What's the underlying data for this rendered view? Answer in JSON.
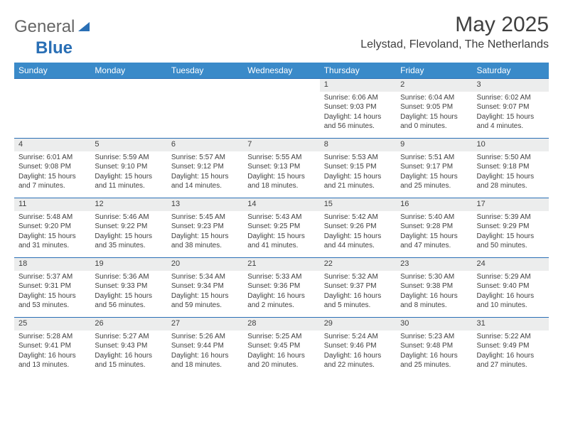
{
  "brand": {
    "part1": "General",
    "part2": "Blue"
  },
  "title": "May 2025",
  "location": "Lelystad, Flevoland, The Netherlands",
  "colors": {
    "header_bg": "#3a8ac9",
    "header_text": "#ffffff",
    "daynum_bg": "#eceded",
    "rule": "#2a6fb5",
    "text": "#404040",
    "brand_accent": "#2a6fb5"
  },
  "day_headers": [
    "Sunday",
    "Monday",
    "Tuesday",
    "Wednesday",
    "Thursday",
    "Friday",
    "Saturday"
  ],
  "weeks": [
    [
      null,
      null,
      null,
      null,
      {
        "n": "1",
        "sunrise": "6:06 AM",
        "sunset": "9:03 PM",
        "daylight": "14 hours and 56 minutes."
      },
      {
        "n": "2",
        "sunrise": "6:04 AM",
        "sunset": "9:05 PM",
        "daylight": "15 hours and 0 minutes."
      },
      {
        "n": "3",
        "sunrise": "6:02 AM",
        "sunset": "9:07 PM",
        "daylight": "15 hours and 4 minutes."
      }
    ],
    [
      {
        "n": "4",
        "sunrise": "6:01 AM",
        "sunset": "9:08 PM",
        "daylight": "15 hours and 7 minutes."
      },
      {
        "n": "5",
        "sunrise": "5:59 AM",
        "sunset": "9:10 PM",
        "daylight": "15 hours and 11 minutes."
      },
      {
        "n": "6",
        "sunrise": "5:57 AM",
        "sunset": "9:12 PM",
        "daylight": "15 hours and 14 minutes."
      },
      {
        "n": "7",
        "sunrise": "5:55 AM",
        "sunset": "9:13 PM",
        "daylight": "15 hours and 18 minutes."
      },
      {
        "n": "8",
        "sunrise": "5:53 AM",
        "sunset": "9:15 PM",
        "daylight": "15 hours and 21 minutes."
      },
      {
        "n": "9",
        "sunrise": "5:51 AM",
        "sunset": "9:17 PM",
        "daylight": "15 hours and 25 minutes."
      },
      {
        "n": "10",
        "sunrise": "5:50 AM",
        "sunset": "9:18 PM",
        "daylight": "15 hours and 28 minutes."
      }
    ],
    [
      {
        "n": "11",
        "sunrise": "5:48 AM",
        "sunset": "9:20 PM",
        "daylight": "15 hours and 31 minutes."
      },
      {
        "n": "12",
        "sunrise": "5:46 AM",
        "sunset": "9:22 PM",
        "daylight": "15 hours and 35 minutes."
      },
      {
        "n": "13",
        "sunrise": "5:45 AM",
        "sunset": "9:23 PM",
        "daylight": "15 hours and 38 minutes."
      },
      {
        "n": "14",
        "sunrise": "5:43 AM",
        "sunset": "9:25 PM",
        "daylight": "15 hours and 41 minutes."
      },
      {
        "n": "15",
        "sunrise": "5:42 AM",
        "sunset": "9:26 PM",
        "daylight": "15 hours and 44 minutes."
      },
      {
        "n": "16",
        "sunrise": "5:40 AM",
        "sunset": "9:28 PM",
        "daylight": "15 hours and 47 minutes."
      },
      {
        "n": "17",
        "sunrise": "5:39 AM",
        "sunset": "9:29 PM",
        "daylight": "15 hours and 50 minutes."
      }
    ],
    [
      {
        "n": "18",
        "sunrise": "5:37 AM",
        "sunset": "9:31 PM",
        "daylight": "15 hours and 53 minutes."
      },
      {
        "n": "19",
        "sunrise": "5:36 AM",
        "sunset": "9:33 PM",
        "daylight": "15 hours and 56 minutes."
      },
      {
        "n": "20",
        "sunrise": "5:34 AM",
        "sunset": "9:34 PM",
        "daylight": "15 hours and 59 minutes."
      },
      {
        "n": "21",
        "sunrise": "5:33 AM",
        "sunset": "9:36 PM",
        "daylight": "16 hours and 2 minutes."
      },
      {
        "n": "22",
        "sunrise": "5:32 AM",
        "sunset": "9:37 PM",
        "daylight": "16 hours and 5 minutes."
      },
      {
        "n": "23",
        "sunrise": "5:30 AM",
        "sunset": "9:38 PM",
        "daylight": "16 hours and 8 minutes."
      },
      {
        "n": "24",
        "sunrise": "5:29 AM",
        "sunset": "9:40 PM",
        "daylight": "16 hours and 10 minutes."
      }
    ],
    [
      {
        "n": "25",
        "sunrise": "5:28 AM",
        "sunset": "9:41 PM",
        "daylight": "16 hours and 13 minutes."
      },
      {
        "n": "26",
        "sunrise": "5:27 AM",
        "sunset": "9:43 PM",
        "daylight": "16 hours and 15 minutes."
      },
      {
        "n": "27",
        "sunrise": "5:26 AM",
        "sunset": "9:44 PM",
        "daylight": "16 hours and 18 minutes."
      },
      {
        "n": "28",
        "sunrise": "5:25 AM",
        "sunset": "9:45 PM",
        "daylight": "16 hours and 20 minutes."
      },
      {
        "n": "29",
        "sunrise": "5:24 AM",
        "sunset": "9:46 PM",
        "daylight": "16 hours and 22 minutes."
      },
      {
        "n": "30",
        "sunrise": "5:23 AM",
        "sunset": "9:48 PM",
        "daylight": "16 hours and 25 minutes."
      },
      {
        "n": "31",
        "sunrise": "5:22 AM",
        "sunset": "9:49 PM",
        "daylight": "16 hours and 27 minutes."
      }
    ]
  ],
  "labels": {
    "sunrise": "Sunrise: ",
    "sunset": "Sunset: ",
    "daylight": "Daylight: "
  }
}
